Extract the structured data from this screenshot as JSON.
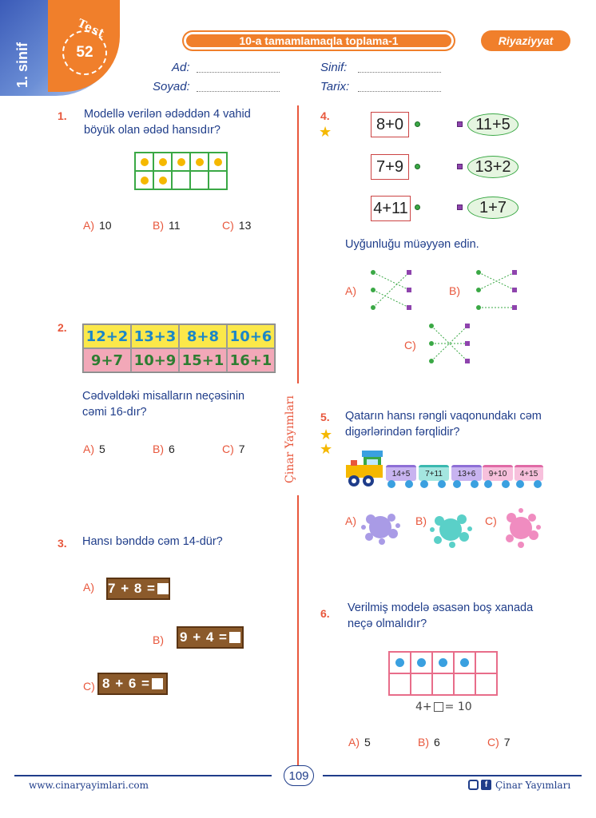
{
  "header": {
    "grade": "1. sinif",
    "test_word": "Test",
    "test_number": "52",
    "title": "10-a tamamlamaqla toplama-1",
    "subject": "Riyaziyyat",
    "fields": {
      "ad": "Ad:",
      "soyad": "Soyad:",
      "sinif": "Sinif:",
      "tarix": "Tarix:"
    }
  },
  "publisher_vertical": "Çinar Yayımları",
  "q1": {
    "num": "1.",
    "text": "Modellə verilən ədəddən 4 vahid böyük olan ədəd hansıdır?",
    "filled_dots": 7,
    "options": [
      {
        "l": "A)",
        "v": "10"
      },
      {
        "l": "B)",
        "v": "11"
      },
      {
        "l": "C)",
        "v": "13"
      }
    ]
  },
  "q2": {
    "num": "2.",
    "row1": [
      "12+2",
      "13+3",
      "8+8",
      "10+6"
    ],
    "row2": [
      "9+7",
      "10+9",
      "15+1",
      "16+1"
    ],
    "text": "Cədvəldəki misalların neçəsinin cəmi 16-dır?",
    "options": [
      {
        "l": "A)",
        "v": "5"
      },
      {
        "l": "B)",
        "v": "6"
      },
      {
        "l": "C)",
        "v": "7"
      }
    ]
  },
  "q3": {
    "num": "3.",
    "text": "Hansı bənddə cəm 14-dür?",
    "options": [
      {
        "l": "A)",
        "v": "7 + 8 ="
      },
      {
        "l": "B)",
        "v": "9 + 4 ="
      },
      {
        "l": "C)",
        "v": "8 + 6 ="
      }
    ]
  },
  "q4": {
    "num": "4.",
    "left": [
      "8+0",
      "7+9",
      "4+11"
    ],
    "right": [
      "11+5",
      "13+2",
      "1+7"
    ],
    "text": "Uyğunluğu müəyyən edin.",
    "options": [
      {
        "l": "A)"
      },
      {
        "l": "B)"
      },
      {
        "l": "C)"
      }
    ]
  },
  "q5": {
    "num": "5.",
    "text": "Qatarın hansı rəngli vaqonundakı cəm digərlərindən fərqlidir?",
    "cars": [
      "14+5",
      "7+11",
      "13+6",
      "9+10",
      "4+15"
    ],
    "options": [
      {
        "l": "A)",
        "color": "#a99be6"
      },
      {
        "l": "B)",
        "color": "#5ad0c8"
      },
      {
        "l": "C)",
        "color": "#f08cc0"
      }
    ]
  },
  "q6": {
    "num": "6.",
    "text": "Verilmiş modelə əsasən boş xanada neçə olmalıdır?",
    "filled_dots": 4,
    "eq_left": "4+",
    "eq_right": "= 10",
    "options": [
      {
        "l": "A)",
        "v": "5"
      },
      {
        "l": "B)",
        "v": "6"
      },
      {
        "l": "C)",
        "v": "7"
      }
    ]
  },
  "footer": {
    "website": "www.cinaryayimlari.com",
    "page": "109",
    "brand": "Çinar Yayımları"
  }
}
